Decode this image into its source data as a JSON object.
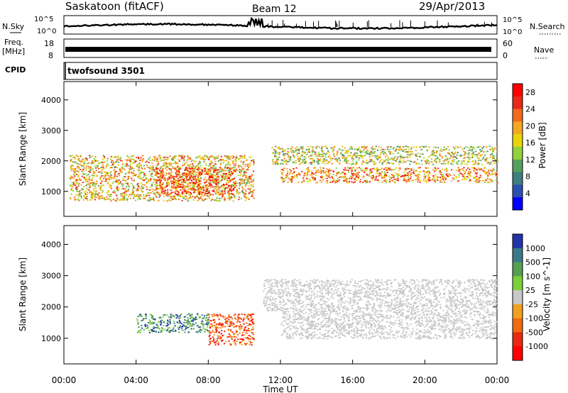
{
  "header": {
    "radar": "Saskatoon (fitACF)",
    "beam": "Beam 12",
    "date": "29/Apr/2013"
  },
  "strips": {
    "nsky_label": "N.Sky",
    "nsearch_label": "N.Search",
    "freq_label_1": "Freq.",
    "freq_label_2": "[MHz]",
    "nave_label": "Nave",
    "cpid_label": "CPID",
    "cpid_value": "twofsound 3501",
    "noise_ticks": [
      "10^5",
      "10^0"
    ],
    "freq_ticks": [
      "18",
      "8"
    ],
    "nave_ticks": [
      "60",
      "0"
    ]
  },
  "colors": {
    "power_scale": [
      "#0000ff",
      "#2b4fb0",
      "#3e7e7e",
      "#55a060",
      "#8fd23c",
      "#e8d40a",
      "#f5a623",
      "#f26b1d",
      "#e8281a",
      "#ff0000"
    ],
    "velocity_scale": [
      "#2233aa",
      "#3a7a88",
      "#55a050",
      "#7ad03a",
      "#c8c8c8",
      "#f0a020",
      "#f06a10",
      "#e82810",
      "#ff0000"
    ],
    "velocity_ground": "#c8c8c8"
  },
  "chart_data": [
    {
      "type": "heatmap",
      "title": "Power",
      "xlabel": "",
      "ylabel": "Slant Range [km]",
      "xlim": [
        "00:00",
        "24:00"
      ],
      "ylim": [
        180,
        4600
      ],
      "y_ticks": [
        1000,
        2000,
        3000,
        4000
      ],
      "colorbar": {
        "label": "Power [dB]",
        "ticks": [
          4,
          8,
          12,
          16,
          20,
          24,
          28
        ],
        "range": [
          0,
          30
        ]
      },
      "series": [
        {
          "band": "morning",
          "t_start_h": 0.3,
          "t_end_h": 10.5,
          "range_km": [
            700,
            2200
          ],
          "value": 20
        },
        {
          "band": "strong core",
          "t_start_h": 5.0,
          "t_end_h": 9.5,
          "range_km": [
            900,
            1800
          ],
          "value": 28
        },
        {
          "band": "afternoon upper",
          "t_start_h": 11.5,
          "t_end_h": 24.0,
          "range_km": [
            1900,
            2500
          ],
          "value": 18
        },
        {
          "band": "afternoon lower",
          "t_start_h": 12.0,
          "t_end_h": 24.0,
          "range_km": [
            1300,
            1800
          ],
          "value": 22
        }
      ]
    },
    {
      "type": "heatmap",
      "title": "Velocity",
      "xlabel": "Time UT",
      "ylabel": "Slant Range [km]",
      "xlim": [
        "00:00",
        "24:00"
      ],
      "ylim": [
        180,
        4600
      ],
      "x_ticks": [
        "00:00",
        "04:00",
        "08:00",
        "12:00",
        "16:00",
        "20:00",
        "00:00"
      ],
      "y_ticks": [
        1000,
        2000,
        3000,
        4000
      ],
      "colorbar": {
        "label": "Velocity [m s^-1]",
        "ticks": [
          1000,
          500,
          100,
          25,
          -25,
          -100,
          -500,
          -1000
        ]
      },
      "series": [
        {
          "band": "ground scatter upper",
          "t_start_h": 11.0,
          "t_end_h": 24.0,
          "range_km": [
            1900,
            2900
          ],
          "value": 0
        },
        {
          "band": "ground scatter lower",
          "t_start_h": 12.0,
          "t_end_h": 24.0,
          "range_km": [
            1000,
            1900
          ],
          "value": 0
        },
        {
          "band": "morning toward",
          "t_start_h": 4.0,
          "t_end_h": 8.0,
          "range_km": [
            1200,
            1800
          ],
          "value": 500
        },
        {
          "band": "morning away",
          "t_start_h": 8.0,
          "t_end_h": 10.5,
          "range_km": [
            800,
            1800
          ],
          "value": -500
        }
      ]
    }
  ]
}
